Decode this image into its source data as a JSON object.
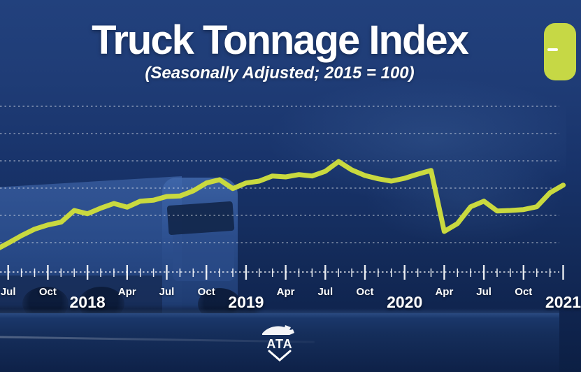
{
  "header": {
    "title": "Truck Tonnage Index",
    "subtitle": "(Seasonally Adjusted; 2015 = 100)"
  },
  "badge": {
    "icon": "minus"
  },
  "footer": {
    "logo_text": "ATA"
  },
  "colors": {
    "accent_green": "#c9d93f",
    "badge_green": "#c6d845",
    "background_navy": "#1d3a73",
    "text_white": "#ffffff",
    "gridline": "rgba(255,255,255,0.48)"
  },
  "chart_data": {
    "type": "line",
    "title": "Truck Tonnage Index",
    "subtitle": "(Seasonally Adjusted; 2015 = 100)",
    "x": [
      "2017-07",
      "2017-08",
      "2017-09",
      "2017-10",
      "2017-11",
      "2017-12",
      "2018-01",
      "2018-02",
      "2018-03",
      "2018-04",
      "2018-05",
      "2018-06",
      "2018-07",
      "2018-08",
      "2018-09",
      "2018-10",
      "2018-11",
      "2018-12",
      "2019-01",
      "2019-02",
      "2019-03",
      "2019-04",
      "2019-05",
      "2019-06",
      "2019-07",
      "2019-08",
      "2019-09",
      "2019-10",
      "2019-11",
      "2019-12",
      "2020-01",
      "2020-02",
      "2020-03",
      "2020-04",
      "2020-05",
      "2020-06",
      "2020-07",
      "2020-08",
      "2020-09",
      "2020-10",
      "2020-11",
      "2020-12"
    ],
    "series": [
      {
        "name": "Truck Tonnage Index (seasonally adjusted, 2015 = 100)",
        "values": [
          102.5,
          104.1,
          105.5,
          106.4,
          107.0,
          109.5,
          108.8,
          110.0,
          111.0,
          110.2,
          111.5,
          111.7,
          112.5,
          112.6,
          113.7,
          115.4,
          116.1,
          114.2,
          115.4,
          115.8,
          116.9,
          116.7,
          117.2,
          116.9,
          117.9,
          120.0,
          118.2,
          117.0,
          116.3,
          115.8,
          116.4,
          117.3,
          118.1,
          105.0,
          106.7,
          110.3,
          111.5,
          109.4,
          109.5,
          109.7,
          110.3,
          113.3
        ]
      }
    ],
    "x_axis": [
      {
        "label": "Jul",
        "type": "month",
        "tick": 0
      },
      {
        "label": "Oct",
        "type": "month",
        "tick": 3
      },
      {
        "label": "2018",
        "type": "year",
        "tick": 6
      },
      {
        "label": "Apr",
        "type": "month",
        "tick": 9
      },
      {
        "label": "Jul",
        "type": "month",
        "tick": 12
      },
      {
        "label": "Oct",
        "type": "month",
        "tick": 15
      },
      {
        "label": "2019",
        "type": "year",
        "tick": 18
      },
      {
        "label": "Apr",
        "type": "month",
        "tick": 21
      },
      {
        "label": "Jul",
        "type": "month",
        "tick": 24
      },
      {
        "label": "Oct",
        "type": "month",
        "tick": 27
      },
      {
        "label": "2020",
        "type": "year",
        "tick": 30
      },
      {
        "label": "Apr",
        "type": "month",
        "tick": 33
      },
      {
        "label": "Jul",
        "type": "month",
        "tick": 36
      },
      {
        "label": "Oct",
        "type": "month",
        "tick": 39
      },
      {
        "label": "2021",
        "type": "year",
        "tick": 42
      }
    ],
    "y_axis": {
      "labels_visible": false,
      "gridline_count": 6,
      "ylim_estimate": [
        96,
        134
      ]
    },
    "grid": "horizontal-dotted",
    "legend": "none",
    "values_note_precision": 0.1
  }
}
